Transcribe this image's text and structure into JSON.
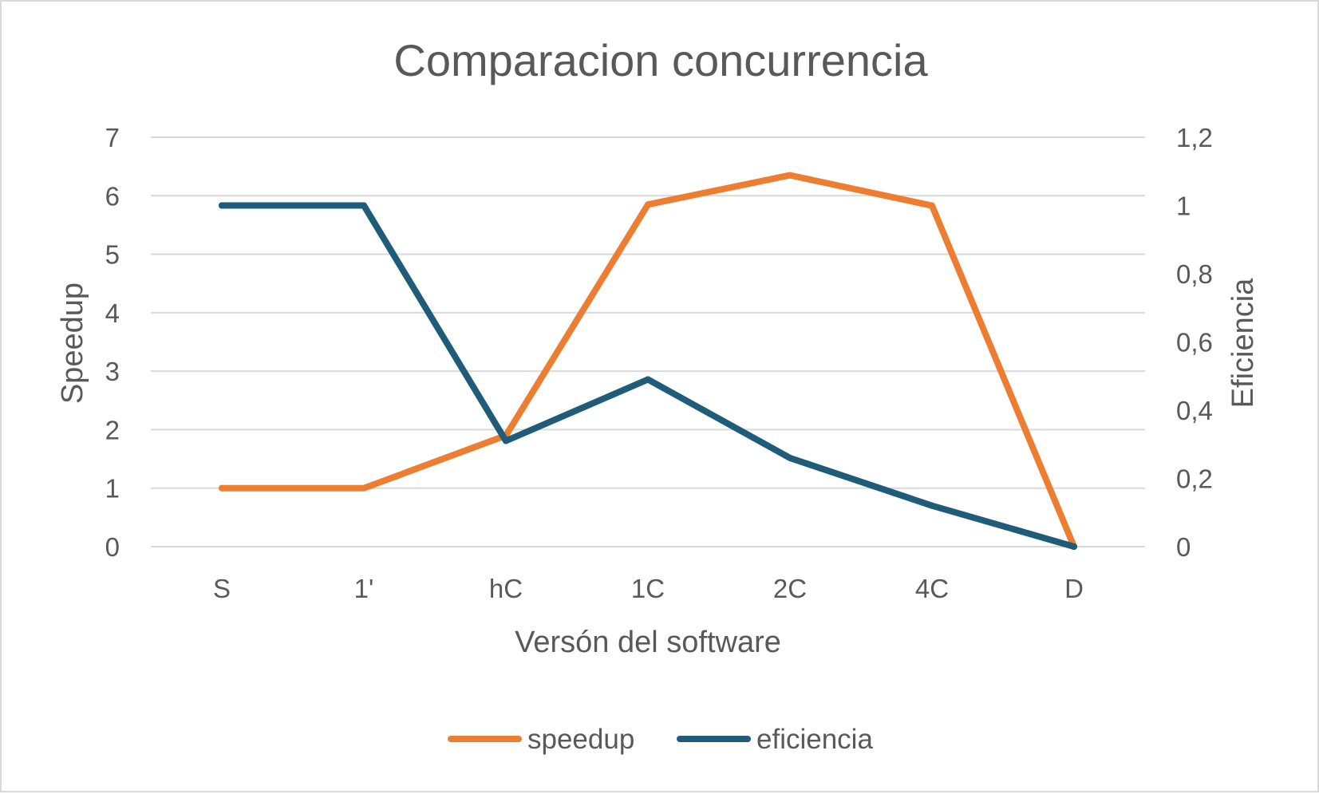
{
  "chart_data": {
    "type": "line",
    "title": "Comparacion concurrencia",
    "xlabel": "Versón del software",
    "ylabel": "Speedup",
    "y2label": "Eficiencia",
    "categories": [
      "S",
      "1'",
      "hC",
      "1C",
      "2C",
      "4C",
      "D"
    ],
    "ylim": [
      0,
      7
    ],
    "yticks": [
      "0",
      "1",
      "2",
      "3",
      "4",
      "5",
      "6",
      "7"
    ],
    "y2lim": [
      0,
      1.2
    ],
    "y2ticks": [
      "0",
      "0,2",
      "0,4",
      "0,6",
      "0,8",
      "1",
      "1,2"
    ],
    "grid": true,
    "legend_position": "bottom",
    "series": [
      {
        "name": "speedup",
        "axis": "left",
        "color": "#ED7D31",
        "values": [
          1.0,
          1.0,
          1.9,
          5.85,
          6.35,
          5.83,
          0.0
        ]
      },
      {
        "name": "eficiencia",
        "axis": "right",
        "color": "#1F5C7A",
        "values": [
          1.0,
          1.0,
          0.31,
          0.49,
          0.26,
          0.12,
          0.0
        ]
      }
    ]
  }
}
